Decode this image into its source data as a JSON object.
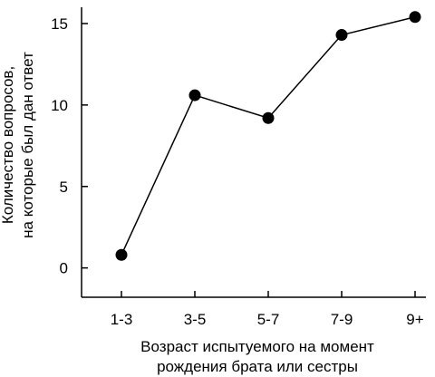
{
  "chart_data": {
    "type": "line",
    "categories": [
      "1-3",
      "3-5",
      "5-7",
      "7-9",
      "9+"
    ],
    "series": [
      {
        "values": [
          0.8,
          10.6,
          9.2,
          14.3,
          15.4
        ]
      }
    ],
    "ylim": [
      -1.8,
      16
    ],
    "yticks": [
      0,
      5,
      10,
      15
    ],
    "ylabel_lines": [
      "Количество вопросов,",
      "на которые был дан ответ"
    ],
    "xlabel_lines": [
      "Возраст испытуемого на момент",
      "рождения брата или сестры"
    ],
    "grid": false,
    "legend": "none",
    "colors": {
      "line": "#000000",
      "marker": "#000000",
      "axis": "#000000"
    }
  }
}
